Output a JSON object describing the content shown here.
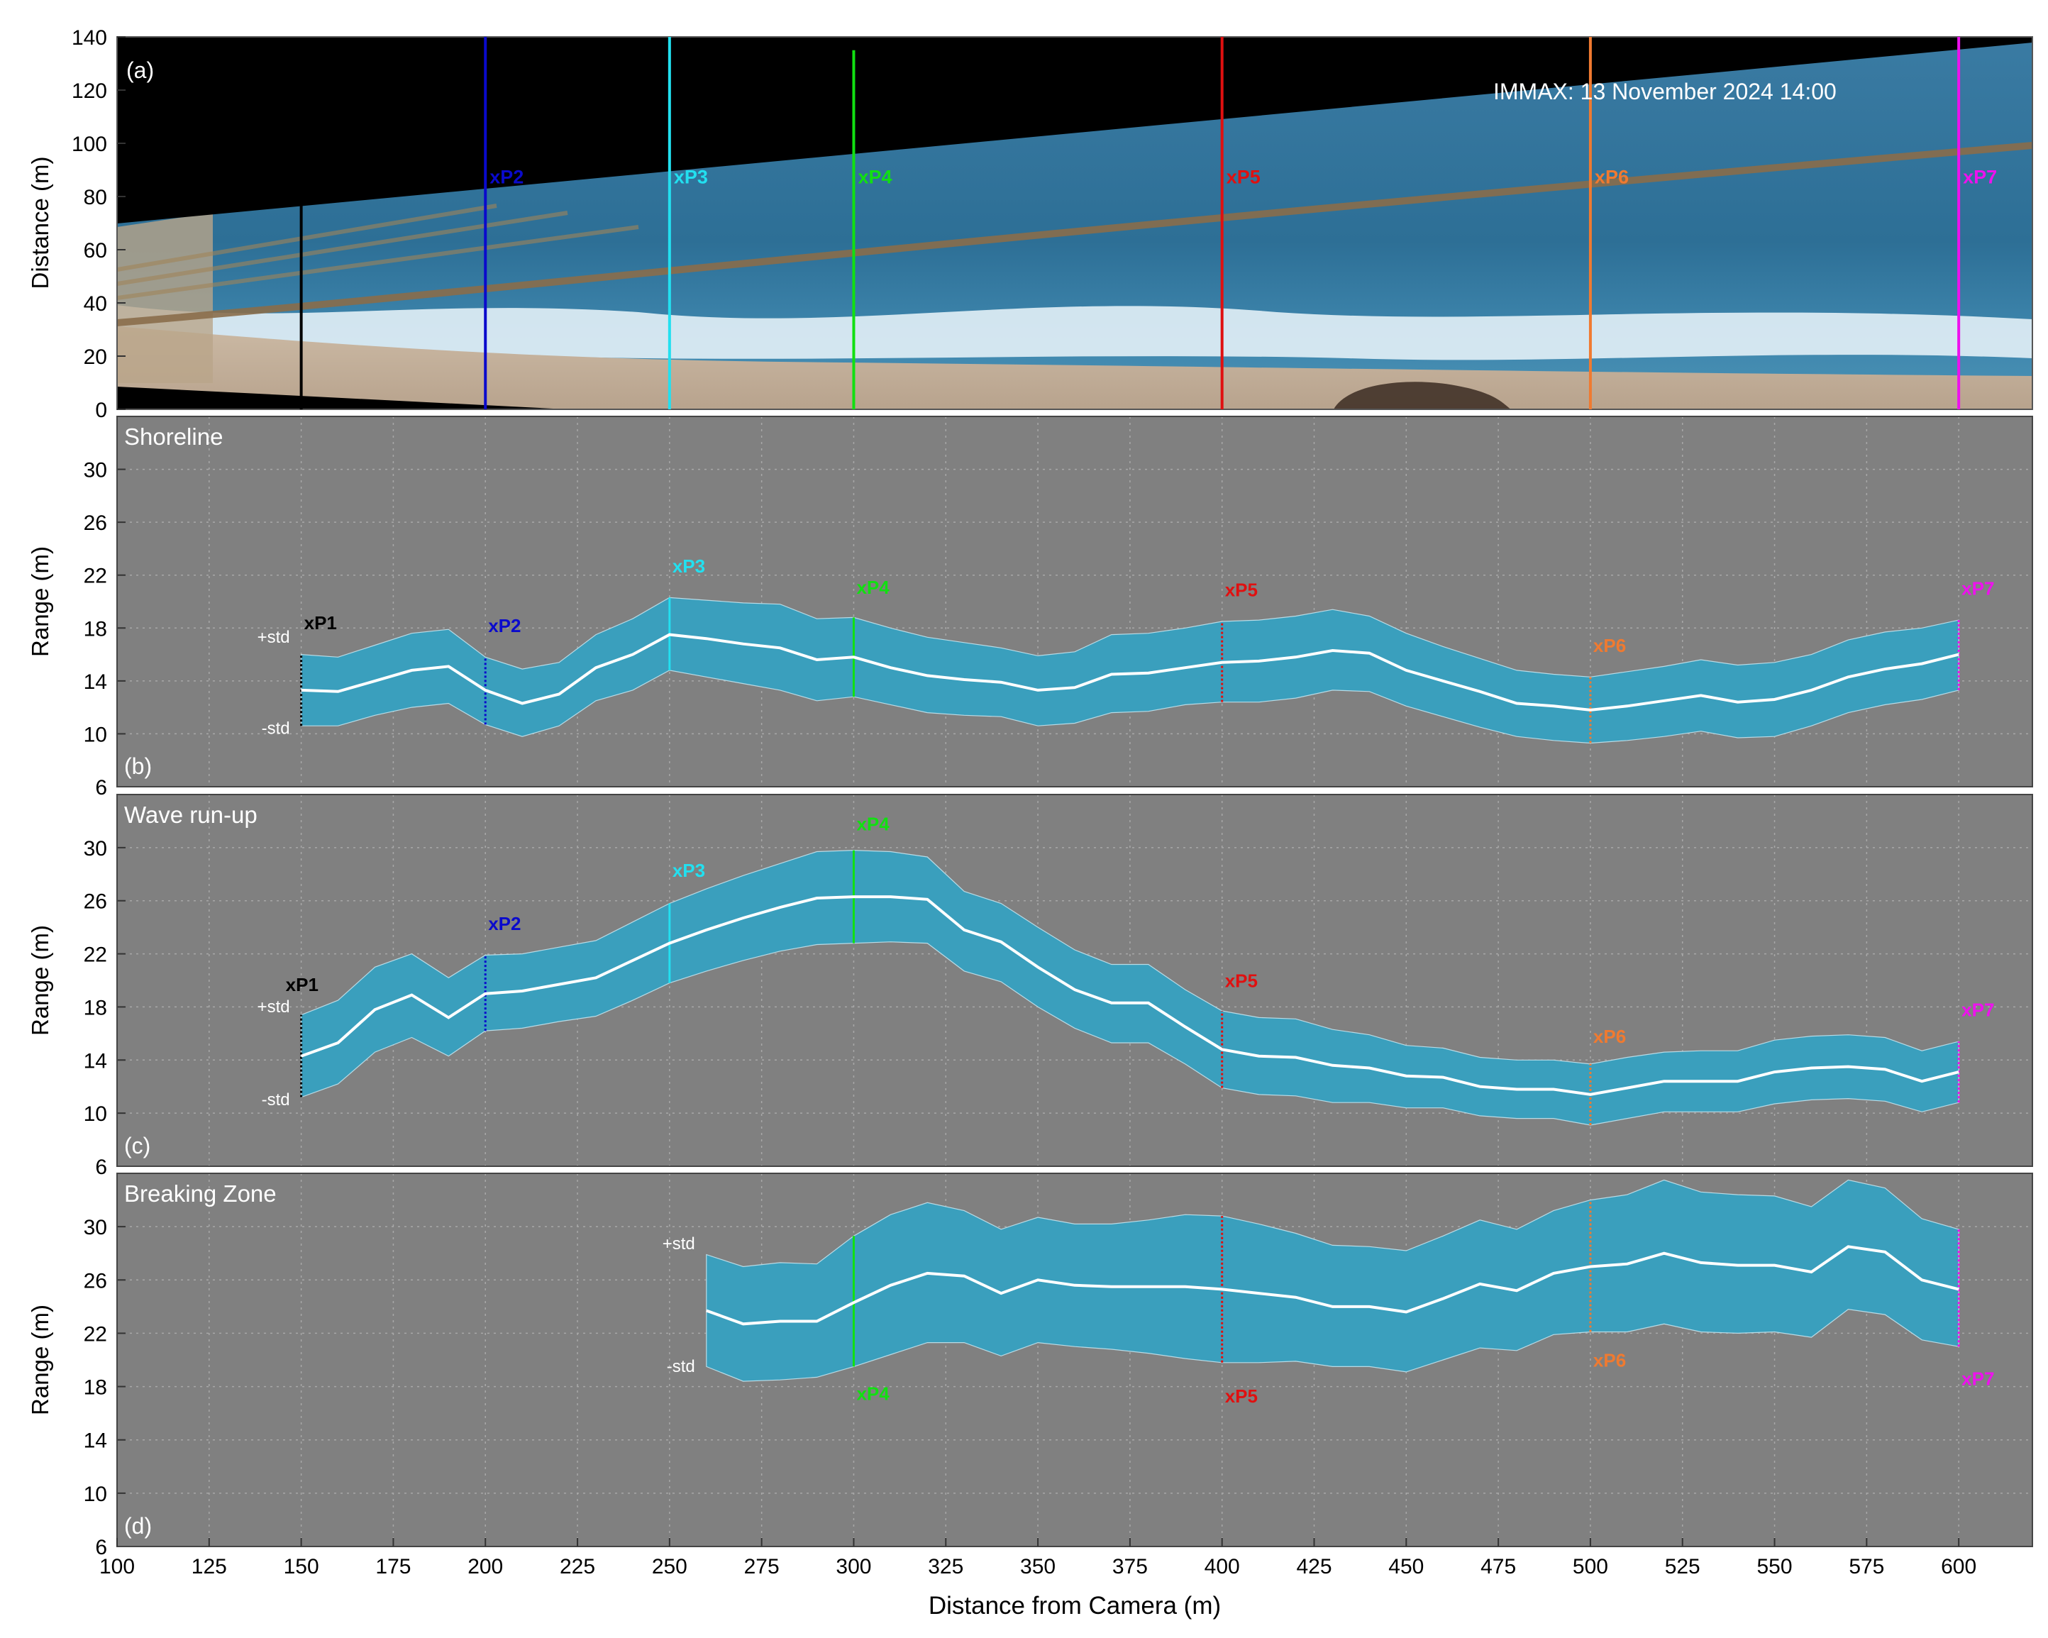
{
  "figure": {
    "xlabel": "Distance from Camera (m)",
    "x_ticks": [
      100,
      125,
      150,
      175,
      200,
      225,
      250,
      275,
      300,
      325,
      350,
      375,
      400,
      425,
      450,
      475,
      500,
      525,
      550,
      575,
      600
    ],
    "xlim": [
      100,
      620
    ]
  },
  "profiles": [
    {
      "name": "xP1",
      "x": 150,
      "color": "#000000"
    },
    {
      "name": "xP2",
      "x": 200,
      "color": "#0a0acc"
    },
    {
      "name": "xP3",
      "x": 250,
      "color": "#22e0f0"
    },
    {
      "name": "xP4",
      "x": 300,
      "color": "#11e011"
    },
    {
      "name": "xP5",
      "x": 400,
      "color": "#e01010"
    },
    {
      "name": "xP6",
      "x": 500,
      "color": "#f07a30"
    },
    {
      "name": "xP7",
      "x": 600,
      "color": "#ee11ee"
    }
  ],
  "panel_a": {
    "tag": "(a)",
    "annotation": "IMMAX: 13 November 2024 14:00",
    "ylabel": "Distance (m)",
    "ylim": [
      0,
      140
    ],
    "y_ticks": [
      0,
      20,
      40,
      60,
      80,
      100,
      120,
      140
    ]
  },
  "std_labels": {
    "plus": "+std",
    "minus": "-std"
  },
  "chart_data": [
    {
      "type": "area",
      "panel": "(b)",
      "title": "Shoreline",
      "ylabel": "Range (m)",
      "ylim": [
        6,
        34
      ],
      "y_ticks": [
        6,
        10,
        14,
        18,
        22,
        26,
        30
      ],
      "grid": true,
      "x": [
        150,
        160,
        170,
        180,
        190,
        200,
        210,
        220,
        230,
        240,
        250,
        260,
        270,
        280,
        290,
        300,
        310,
        320,
        330,
        340,
        350,
        360,
        370,
        380,
        390,
        400,
        410,
        420,
        430,
        440,
        450,
        460,
        470,
        480,
        490,
        500,
        510,
        520,
        530,
        540,
        550,
        560,
        570,
        580,
        590,
        600
      ],
      "mean": [
        13.3,
        13.2,
        14.0,
        14.8,
        15.1,
        13.3,
        12.3,
        13.0,
        15.0,
        16.0,
        17.5,
        17.2,
        16.8,
        16.5,
        15.6,
        15.8,
        15.0,
        14.4,
        14.1,
        13.9,
        13.3,
        13.5,
        14.5,
        14.6,
        15.0,
        15.4,
        15.5,
        15.8,
        16.3,
        16.1,
        14.8,
        14.0,
        13.2,
        12.3,
        12.1,
        11.8,
        12.1,
        12.5,
        12.9,
        12.4,
        12.6,
        13.3,
        14.3,
        14.9,
        15.3,
        16.0
      ],
      "upper": [
        16.0,
        15.8,
        16.7,
        17.6,
        17.9,
        15.8,
        14.9,
        15.4,
        17.5,
        18.7,
        20.3,
        20.1,
        19.9,
        19.8,
        18.7,
        18.8,
        18.0,
        17.3,
        16.9,
        16.5,
        15.9,
        16.2,
        17.5,
        17.6,
        18.0,
        18.5,
        18.6,
        18.9,
        19.4,
        18.9,
        17.6,
        16.6,
        15.7,
        14.8,
        14.5,
        14.3,
        14.7,
        15.1,
        15.6,
        15.2,
        15.4,
        16.0,
        17.1,
        17.7,
        18.0,
        18.6
      ],
      "lower": [
        10.6,
        10.6,
        11.4,
        12.0,
        12.3,
        10.7,
        9.8,
        10.6,
        12.5,
        13.3,
        14.8,
        14.3,
        13.8,
        13.3,
        12.5,
        12.8,
        12.2,
        11.6,
        11.4,
        11.3,
        10.6,
        10.8,
        11.6,
        11.7,
        12.2,
        12.4,
        12.4,
        12.7,
        13.3,
        13.2,
        12.1,
        11.3,
        10.5,
        9.8,
        9.5,
        9.3,
        9.5,
        9.8,
        10.2,
        9.7,
        9.8,
        10.6,
        11.6,
        12.2,
        12.6,
        13.3
      ],
      "profile_labels": [
        {
          "name": "xP1",
          "x": 150,
          "y": 17.9
        },
        {
          "name": "xP2",
          "x": 200,
          "y": 17.7
        },
        {
          "name": "xP3",
          "x": 250,
          "y": 22.2
        },
        {
          "name": "xP4",
          "x": 300,
          "y": 20.6
        },
        {
          "name": "xP5",
          "x": 400,
          "y": 20.4
        },
        {
          "name": "xP6",
          "x": 500,
          "y": 16.2
        },
        {
          "name": "xP7",
          "x": 600,
          "y": 20.5
        }
      ],
      "std_label_positions": {
        "plus_y": 16.9,
        "minus_y": 10.0,
        "x": 150
      }
    },
    {
      "type": "area",
      "panel": "(c)",
      "title": "Wave run-up",
      "ylabel": "Range (m)",
      "ylim": [
        6,
        34
      ],
      "y_ticks": [
        6,
        10,
        14,
        18,
        22,
        26,
        30
      ],
      "grid": true,
      "x": [
        150,
        160,
        170,
        180,
        190,
        200,
        210,
        220,
        230,
        240,
        250,
        260,
        270,
        280,
        290,
        300,
        310,
        320,
        330,
        340,
        350,
        360,
        370,
        380,
        390,
        400,
        410,
        420,
        430,
        440,
        450,
        460,
        470,
        480,
        490,
        500,
        510,
        520,
        530,
        540,
        550,
        560,
        570,
        580,
        590,
        600
      ],
      "mean": [
        14.3,
        15.3,
        17.8,
        18.9,
        17.2,
        19.0,
        19.2,
        19.7,
        20.2,
        21.5,
        22.8,
        23.8,
        24.7,
        25.5,
        26.2,
        26.3,
        26.3,
        26.1,
        23.8,
        22.9,
        21.0,
        19.3,
        18.3,
        18.3,
        16.5,
        14.8,
        14.3,
        14.2,
        13.6,
        13.4,
        12.8,
        12.7,
        12.0,
        11.8,
        11.8,
        11.4,
        11.9,
        12.4,
        12.4,
        12.4,
        13.1,
        13.4,
        13.5,
        13.3,
        12.4,
        13.1
      ],
      "upper": [
        17.4,
        18.5,
        21.0,
        22.0,
        20.2,
        21.9,
        22.0,
        22.5,
        23.0,
        24.4,
        25.8,
        26.9,
        27.9,
        28.8,
        29.7,
        29.8,
        29.7,
        29.3,
        26.7,
        25.8,
        24.0,
        22.3,
        21.2,
        21.2,
        19.3,
        17.7,
        17.2,
        17.1,
        16.3,
        15.9,
        15.1,
        14.9,
        14.2,
        14.0,
        14.0,
        13.7,
        14.2,
        14.6,
        14.7,
        14.7,
        15.5,
        15.8,
        15.9,
        15.7,
        14.7,
        15.4
      ],
      "lower": [
        11.2,
        12.2,
        14.6,
        15.7,
        14.3,
        16.2,
        16.4,
        16.9,
        17.3,
        18.5,
        19.8,
        20.7,
        21.5,
        22.2,
        22.7,
        22.8,
        22.9,
        22.8,
        20.7,
        19.9,
        18.0,
        16.4,
        15.3,
        15.3,
        13.7,
        11.9,
        11.4,
        11.3,
        10.8,
        10.8,
        10.4,
        10.4,
        9.8,
        9.6,
        9.6,
        9.1,
        9.6,
        10.1,
        10.1,
        10.1,
        10.7,
        11.0,
        11.1,
        10.9,
        10.1,
        10.8
      ],
      "profile_labels": [
        {
          "name": "xP1",
          "x": 145,
          "y": 19.2
        },
        {
          "name": "xP2",
          "x": 200,
          "y": 23.8
        },
        {
          "name": "xP3",
          "x": 250,
          "y": 27.8
        },
        {
          "name": "xP4",
          "x": 300,
          "y": 31.3
        },
        {
          "name": "xP5",
          "x": 400,
          "y": 19.5
        },
        {
          "name": "xP6",
          "x": 500,
          "y": 15.3
        },
        {
          "name": "xP7",
          "x": 600,
          "y": 17.3
        }
      ],
      "std_label_positions": {
        "plus_y": 17.6,
        "minus_y": 10.6,
        "x": 150
      }
    },
    {
      "type": "area",
      "panel": "(d)",
      "title": "Breaking Zone",
      "ylabel": "Range (m)",
      "ylim": [
        6,
        34
      ],
      "y_ticks": [
        6,
        10,
        14,
        18,
        22,
        26,
        30
      ],
      "grid": true,
      "x": [
        260,
        270,
        280,
        290,
        300,
        310,
        320,
        330,
        340,
        350,
        360,
        370,
        380,
        390,
        400,
        410,
        420,
        430,
        440,
        450,
        460,
        470,
        480,
        490,
        500,
        510,
        520,
        530,
        540,
        550,
        560,
        570,
        580,
        590,
        600
      ],
      "mean": [
        23.7,
        22.7,
        22.9,
        22.9,
        24.3,
        25.6,
        26.5,
        26.3,
        25.0,
        26.0,
        25.6,
        25.5,
        25.5,
        25.5,
        25.3,
        25.0,
        24.7,
        24.0,
        24.0,
        23.6,
        24.6,
        25.7,
        25.2,
        26.5,
        27.0,
        27.2,
        28.0,
        27.3,
        27.1,
        27.1,
        26.6,
        28.5,
        28.1,
        26.0,
        25.3
      ],
      "upper": [
        27.9,
        27.0,
        27.3,
        27.2,
        29.3,
        30.9,
        31.8,
        31.2,
        29.8,
        30.7,
        30.2,
        30.2,
        30.5,
        30.9,
        30.8,
        30.2,
        29.5,
        28.6,
        28.5,
        28.2,
        29.3,
        30.5,
        29.8,
        31.2,
        32.0,
        32.4,
        33.5,
        32.6,
        32.4,
        32.3,
        31.5,
        33.5,
        32.9,
        30.6,
        29.8
      ],
      "lower": [
        19.5,
        18.4,
        18.5,
        18.7,
        19.5,
        20.4,
        21.3,
        21.3,
        20.3,
        21.3,
        21.0,
        20.8,
        20.5,
        20.1,
        19.8,
        19.8,
        19.9,
        19.5,
        19.5,
        19.1,
        20.0,
        20.9,
        20.7,
        21.9,
        22.1,
        22.1,
        22.7,
        22.1,
        22.0,
        22.1,
        21.7,
        23.8,
        23.4,
        21.5,
        21.0
      ],
      "profile_labels": [
        {
          "name": "xP4",
          "x": 300,
          "y": 17.0
        },
        {
          "name": "xP5",
          "x": 400,
          "y": 16.8
        },
        {
          "name": "xP6",
          "x": 500,
          "y": 19.5
        },
        {
          "name": "xP7",
          "x": 600,
          "y": 18.1
        }
      ],
      "std_label_positions": {
        "plus_y": 28.3,
        "minus_y": 19.1,
        "x": 260
      }
    }
  ]
}
